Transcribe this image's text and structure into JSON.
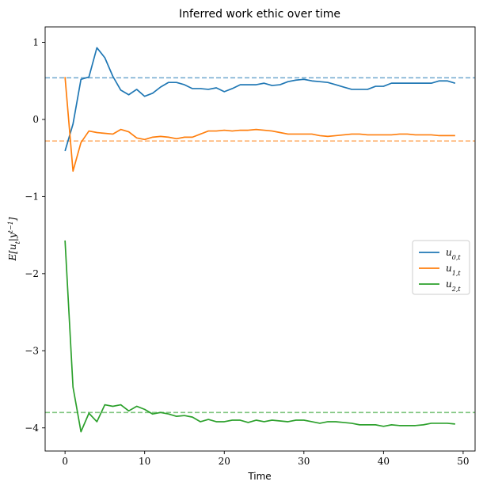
{
  "chart_data": {
    "type": "line",
    "title": "Inferred work ethic over time",
    "xlabel": "Time",
    "ylabel": "E[u_t|y^(t-1)]",
    "xlim": [
      -2.5,
      51.5
    ],
    "ylim": [
      -4.3,
      1.2
    ],
    "xticks": [
      0,
      10,
      20,
      30,
      40,
      50
    ],
    "yticks": [
      1,
      0,
      -1,
      -2,
      -3,
      -4
    ],
    "xtick_labels": [
      "0",
      "10",
      "20",
      "30",
      "40",
      "50"
    ],
    "ytick_labels": [
      "1",
      "0",
      "−1",
      "−2",
      "−3",
      "−4"
    ],
    "grid": false,
    "legend_position": "center-right",
    "x": [
      0,
      1,
      2,
      3,
      4,
      5,
      6,
      7,
      8,
      9,
      10,
      11,
      12,
      13,
      14,
      15,
      16,
      17,
      18,
      19,
      20,
      21,
      22,
      23,
      24,
      25,
      26,
      27,
      28,
      29,
      30,
      31,
      32,
      33,
      34,
      35,
      36,
      37,
      38,
      39,
      40,
      41,
      42,
      43,
      44,
      45,
      46,
      47,
      48,
      49
    ],
    "series": [
      {
        "name": "u_0,t",
        "label_main": "u",
        "label_sub": "0,t",
        "color": "#1f77b4",
        "values": [
          -0.41,
          -0.06,
          0.52,
          0.55,
          0.93,
          0.8,
          0.56,
          0.38,
          0.32,
          0.39,
          0.3,
          0.34,
          0.42,
          0.48,
          0.48,
          0.45,
          0.4,
          0.4,
          0.39,
          0.41,
          0.36,
          0.4,
          0.45,
          0.45,
          0.45,
          0.47,
          0.44,
          0.45,
          0.49,
          0.51,
          0.52,
          0.5,
          0.49,
          0.48,
          0.45,
          0.42,
          0.39,
          0.39,
          0.39,
          0.43,
          0.43,
          0.47,
          0.47,
          0.47,
          0.47,
          0.47,
          0.47,
          0.5,
          0.5,
          0.47
        ],
        "reference": 0.54
      },
      {
        "name": "u_1,t",
        "label_main": "u",
        "label_sub": "1,t",
        "color": "#ff7f0e",
        "values": [
          0.55,
          -0.67,
          -0.3,
          -0.15,
          -0.17,
          -0.18,
          -0.19,
          -0.13,
          -0.16,
          -0.24,
          -0.26,
          -0.23,
          -0.22,
          -0.23,
          -0.25,
          -0.23,
          -0.23,
          -0.19,
          -0.15,
          -0.15,
          -0.14,
          -0.15,
          -0.14,
          -0.14,
          -0.13,
          -0.14,
          -0.15,
          -0.17,
          -0.19,
          -0.19,
          -0.19,
          -0.19,
          -0.21,
          -0.22,
          -0.21,
          -0.2,
          -0.19,
          -0.19,
          -0.2,
          -0.2,
          -0.2,
          -0.2,
          -0.19,
          -0.19,
          -0.2,
          -0.2,
          -0.2,
          -0.21,
          -0.21,
          -0.21
        ],
        "reference": -0.28
      },
      {
        "name": "u_2,t",
        "label_main": "u",
        "label_sub": "2,t",
        "color": "#2ca02c",
        "values": [
          -1.57,
          -3.47,
          -4.05,
          -3.81,
          -3.92,
          -3.7,
          -3.72,
          -3.7,
          -3.78,
          -3.72,
          -3.76,
          -3.82,
          -3.8,
          -3.82,
          -3.85,
          -3.84,
          -3.86,
          -3.92,
          -3.89,
          -3.92,
          -3.92,
          -3.9,
          -3.9,
          -3.93,
          -3.9,
          -3.92,
          -3.9,
          -3.91,
          -3.92,
          -3.9,
          -3.9,
          -3.92,
          -3.94,
          -3.92,
          -3.92,
          -3.93,
          -3.94,
          -3.96,
          -3.96,
          -3.96,
          -3.98,
          -3.96,
          -3.97,
          -3.97,
          -3.97,
          -3.96,
          -3.94,
          -3.94,
          -3.94,
          -3.95
        ],
        "reference": -3.8
      }
    ]
  }
}
